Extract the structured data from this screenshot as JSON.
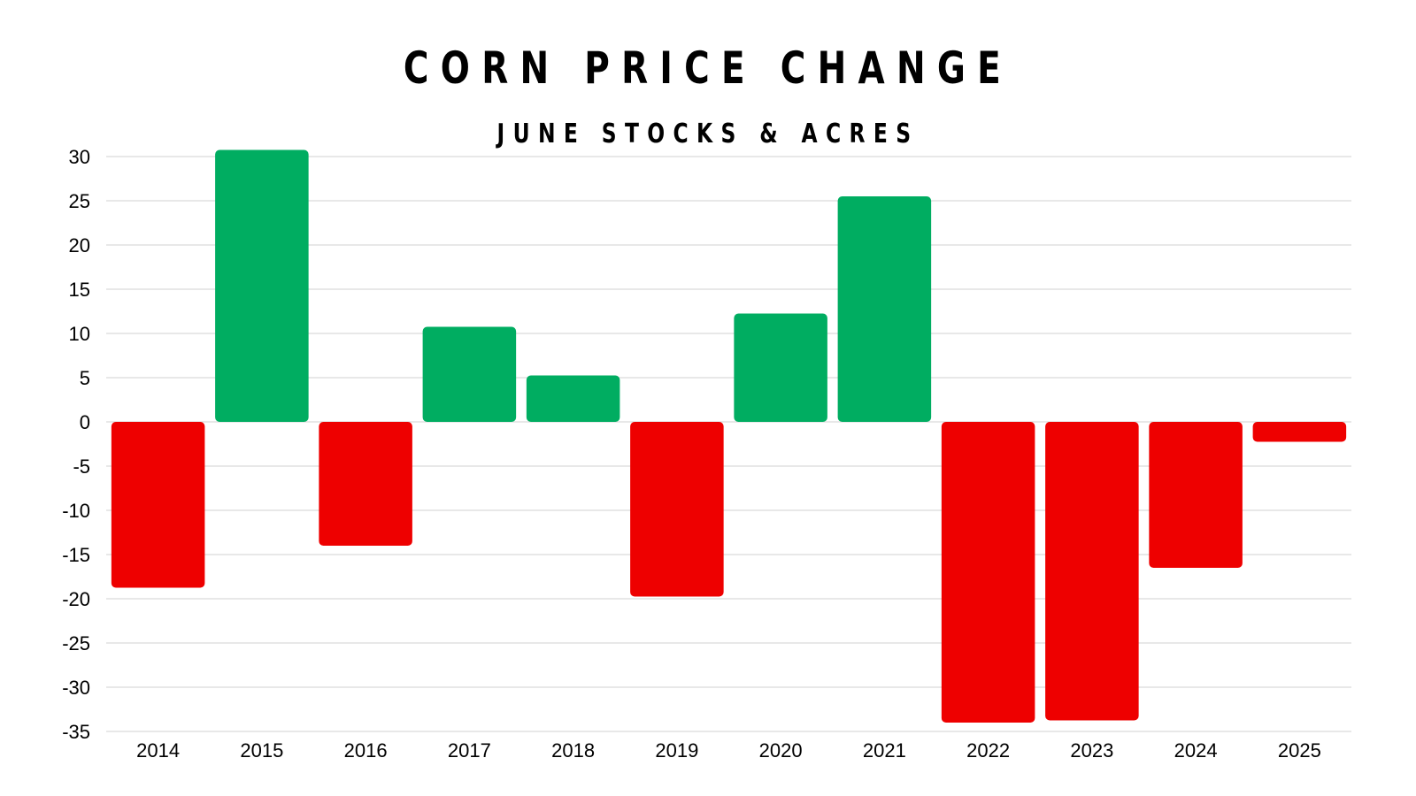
{
  "chart_data": {
    "type": "bar",
    "title": "CORN PRICE CHANGE",
    "subtitle": "JUNE STOCKS & ACRES",
    "xlabel": "",
    "ylabel": "",
    "categories": [
      "2014",
      "2015",
      "2016",
      "2017",
      "2018",
      "2019",
      "2020",
      "2021",
      "2022",
      "2023",
      "2024",
      "2025"
    ],
    "values": [
      -18.75,
      30.75,
      -14,
      10.75,
      5.25,
      -19.75,
      12.25,
      25.5,
      -34,
      -33.75,
      -16.5,
      -2.25
    ],
    "ylim": [
      -35,
      30
    ],
    "yticks": [
      30,
      25,
      20,
      15,
      10,
      5,
      0,
      -5,
      -10,
      -15,
      -20,
      -25,
      -30,
      -35
    ],
    "grid": true,
    "legend": "none",
    "colors": {
      "positive": "#00ad61",
      "negative": "#ee0000",
      "grid": "#d9d9d9",
      "text": "#000000"
    }
  }
}
